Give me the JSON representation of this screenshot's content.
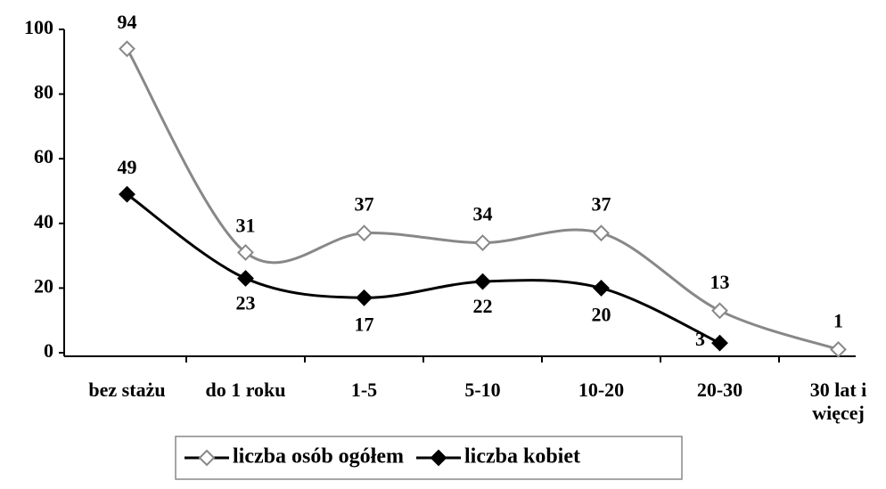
{
  "chart_data": {
    "type": "line",
    "categories": [
      "bez stażu",
      "do 1 roku",
      "1-5",
      "5-10",
      "10-20",
      "20-30",
      "30 lat i\nwięcej"
    ],
    "series": [
      {
        "name": "liczba osób ogółem",
        "color": "#888888",
        "marker": "open-diamond",
        "values": [
          94,
          31,
          37,
          34,
          37,
          13,
          1
        ]
      },
      {
        "name": "liczba kobiet",
        "color": "#000000",
        "marker": "filled-diamond",
        "values": [
          49,
          23,
          17,
          22,
          20,
          3,
          null
        ]
      }
    ],
    "ylim": [
      0,
      100
    ],
    "yticks": [
      0,
      20,
      40,
      60,
      80,
      100
    ],
    "smooth": true,
    "legend": "bottom"
  }
}
